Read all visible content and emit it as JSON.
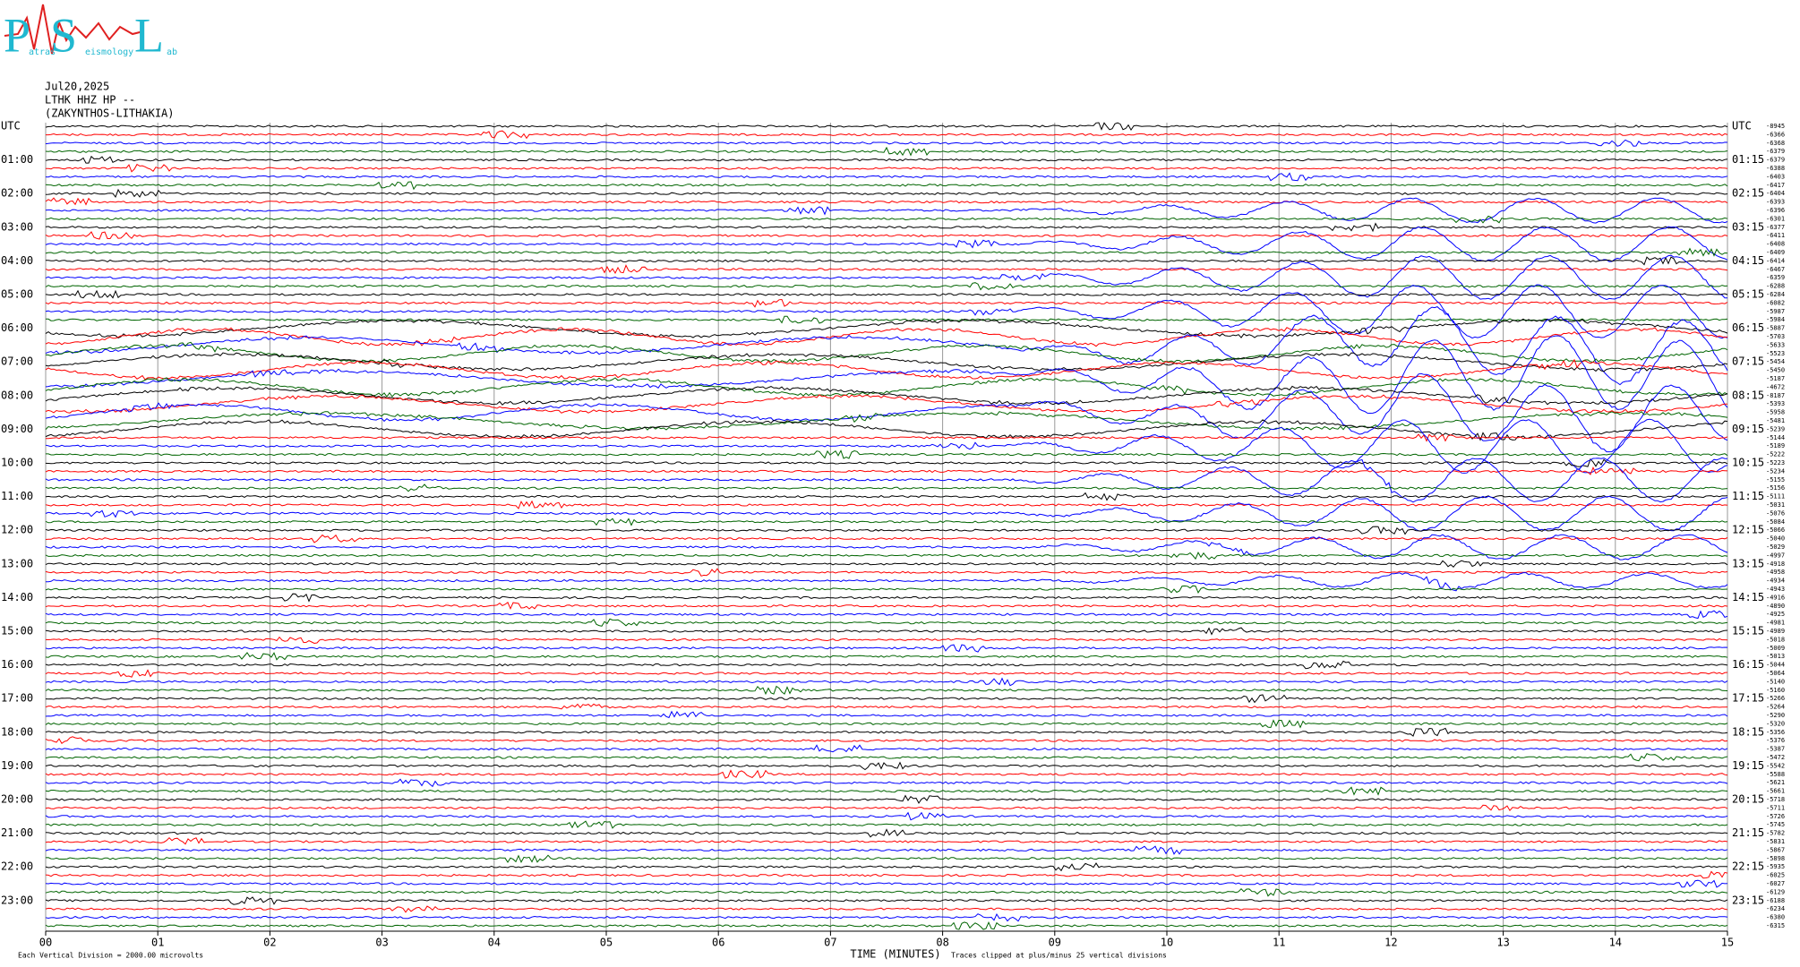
{
  "logo": {
    "letters": [
      "P",
      "S",
      "L"
    ],
    "fragments": [
      "atras",
      "eismology",
      "ab"
    ]
  },
  "header": {
    "date": "Jul20,2025",
    "station": "LTHK HHZ HP --",
    "location": "(ZAKYNTHOS-LITHAKIA)"
  },
  "left_labels": [
    "UTC",
    "01:00",
    "02:00",
    "03:00",
    "04:00",
    "05:00",
    "06:00",
    "07:00",
    "08:00",
    "09:00",
    "10:00",
    "11:00",
    "12:00",
    "13:00",
    "14:00",
    "15:00",
    "16:00",
    "17:00",
    "18:00",
    "19:00",
    "20:00",
    "21:00",
    "22:00",
    "23:00"
  ],
  "right_labels": [
    "UTC",
    "01:15",
    "02:15",
    "03:15",
    "04:15",
    "05:15",
    "06:15",
    "07:15",
    "08:15",
    "09:15",
    "10:15",
    "11:15",
    "12:15",
    "13:15",
    "14:15",
    "15:15",
    "16:15",
    "17:15",
    "18:15",
    "19:15",
    "20:15",
    "21:15",
    "22:15",
    "23:15"
  ],
  "trace_offsets": [
    -8945,
    -6366,
    -6368,
    -6379,
    -6379,
    -6388,
    -6403,
    -6417,
    -6404,
    -6393,
    -6396,
    -6301,
    -6377,
    -6411,
    -6408,
    -6409,
    -6414,
    -6467,
    -6359,
    -6288,
    -6284,
    -6082,
    -5987,
    -5984,
    -5887,
    -5703,
    -5633,
    -5523,
    -5454,
    -5450,
    -5187,
    -4672,
    -8187,
    -5393,
    -5958,
    -5481,
    -5239,
    -5144,
    -5189,
    -5222,
    -5223,
    -5234,
    -5155,
    -5156,
    -5111,
    -5031,
    -5076,
    -5084,
    -5066,
    -5040,
    -5029,
    -4997,
    -4918,
    -4958,
    -4934,
    -4943,
    -4916,
    -4890,
    -4925,
    -4981,
    -4989,
    -5018,
    -5009,
    -5013,
    -5044,
    -5064,
    -5140,
    -5160,
    -5266,
    -5264,
    -5290,
    -5320,
    -5356,
    -5376,
    -5387,
    -5472,
    -5542,
    -5588,
    -5621,
    -5661,
    -5718,
    -5711,
    -5726,
    -5745,
    -5782,
    -5831,
    -5867,
    -5898,
    -5935,
    -6025,
    -6027,
    -6129,
    -6188,
    -6234,
    -6380,
    -6315
  ],
  "trace_colors": [
    "#000000",
    "#ff0000",
    "#0000ff",
    "#006400"
  ],
  "x_axis": {
    "title": "TIME (MINUTES)",
    "ticks": [
      "00",
      "01",
      "02",
      "03",
      "04",
      "05",
      "06",
      "07",
      "08",
      "09",
      "10",
      "11",
      "12",
      "13",
      "14",
      "15"
    ]
  },
  "footer": {
    "scale_note": "Each Vertical Division = 2000.00 microvolts",
    "clip_note": "Traces clipped at plus/minus 25 vertical divisions"
  }
}
